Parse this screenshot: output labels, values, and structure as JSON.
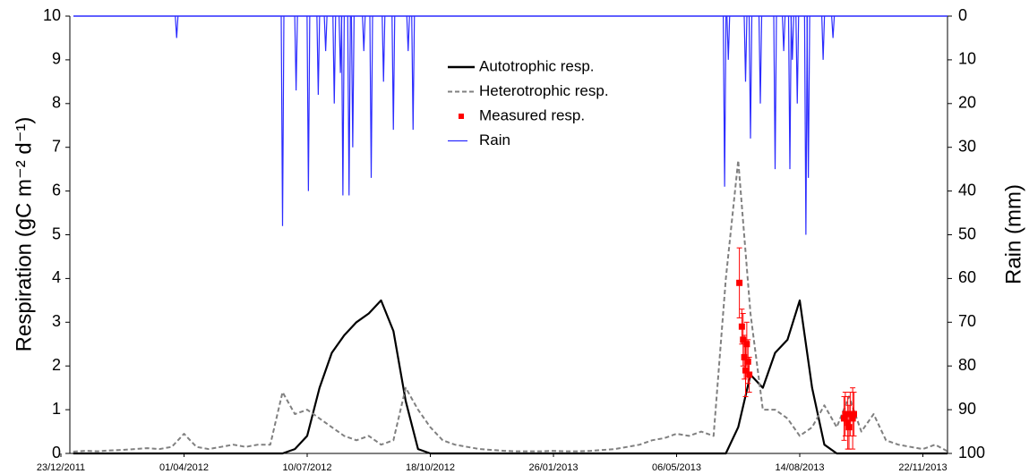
{
  "chart_data": {
    "type": "line",
    "ylabel": "Respiration (gC m⁻² d⁻¹)",
    "y2label": "Rain (mm)",
    "xlim": [
      "2011-12-23",
      "2013-12-12"
    ],
    "xticks": [
      {
        "value": "2011-12-23",
        "label": "23/12/2011"
      },
      {
        "value": "2012-04-01",
        "label": "01/04/2012"
      },
      {
        "value": "2012-07-10",
        "label": "10/07/2012"
      },
      {
        "value": "2012-10-18",
        "label": "18/10/2012"
      },
      {
        "value": "2013-01-26",
        "label": "26/01/2013"
      },
      {
        "value": "2013-05-06",
        "label": "06/05/2013"
      },
      {
        "value": "2013-08-14",
        "label": "14/08/2013"
      },
      {
        "value": "2013-11-22",
        "label": "22/11/2013"
      }
    ],
    "ylim": [
      0,
      10
    ],
    "yticks": [
      0,
      1,
      2,
      3,
      4,
      5,
      6,
      7,
      8,
      9,
      10
    ],
    "y2lim": [
      100,
      0
    ],
    "y2ticks": [
      0,
      10,
      20,
      30,
      40,
      50,
      60,
      70,
      80,
      90,
      100
    ],
    "legend": "upper center",
    "x": [
      "2012-01-02",
      "2012-01-12",
      "2012-01-22",
      "2012-02-01",
      "2012-02-11",
      "2012-02-21",
      "2012-03-02",
      "2012-03-12",
      "2012-03-22",
      "2012-04-01",
      "2012-04-11",
      "2012-04-21",
      "2012-05-01",
      "2012-05-11",
      "2012-05-21",
      "2012-05-31",
      "2012-06-10",
      "2012-06-20",
      "2012-06-30",
      "2012-07-10",
      "2012-07-20",
      "2012-07-30",
      "2012-08-09",
      "2012-08-19",
      "2012-08-29",
      "2012-09-08",
      "2012-09-18",
      "2012-09-28",
      "2012-10-08",
      "2012-10-18",
      "2012-10-28",
      "2012-11-07",
      "2012-11-17",
      "2012-11-27",
      "2012-12-07",
      "2012-12-17",
      "2012-12-27",
      "2013-01-06",
      "2013-01-16",
      "2013-01-26",
      "2013-02-05",
      "2013-02-15",
      "2013-02-25",
      "2013-03-07",
      "2013-03-17",
      "2013-03-27",
      "2013-04-06",
      "2013-04-16",
      "2013-04-26",
      "2013-05-06",
      "2013-05-16",
      "2013-05-26",
      "2013-06-05",
      "2013-06-15",
      "2013-06-25",
      "2013-07-05",
      "2013-07-15",
      "2013-07-25",
      "2013-08-04",
      "2013-08-14",
      "2013-08-24",
      "2013-09-03",
      "2013-09-13",
      "2013-09-23",
      "2013-10-03",
      "2013-10-13",
      "2013-10-23",
      "2013-11-02",
      "2013-11-12",
      "2013-11-22",
      "2013-12-02",
      "2013-12-12"
    ],
    "series": [
      {
        "name": "Autotrophic resp.",
        "kind": "line",
        "color": "#000000",
        "dash": false,
        "values": [
          0,
          0,
          0,
          0,
          0,
          0,
          0,
          0,
          0,
          0,
          0,
          0,
          0,
          0,
          0,
          0,
          0,
          0,
          0.1,
          0.4,
          1.5,
          2.3,
          2.7,
          3.0,
          3.2,
          3.5,
          2.8,
          1.2,
          0.1,
          0,
          0,
          0,
          0,
          0,
          0,
          0,
          0,
          0,
          0,
          0,
          0,
          0,
          0,
          0,
          0,
          0,
          0,
          0,
          0,
          0,
          0,
          0,
          0,
          0,
          0.6,
          1.8,
          1.5,
          2.3,
          2.6,
          3.5,
          1.5,
          0.2,
          0,
          0,
          0,
          0,
          0,
          0,
          0,
          0,
          0,
          0
        ]
      },
      {
        "name": "Heterotrophic resp.",
        "kind": "line",
        "color": "#808080",
        "dash": true,
        "values": [
          0.04,
          0.06,
          0.05,
          0.07,
          0.08,
          0.1,
          0.12,
          0.1,
          0.15,
          0.45,
          0.15,
          0.1,
          0.15,
          0.2,
          0.15,
          0.2,
          0.2,
          1.4,
          0.9,
          1.0,
          0.8,
          0.6,
          0.4,
          0.3,
          0.4,
          0.2,
          0.3,
          1.5,
          1.0,
          0.6,
          0.3,
          0.2,
          0.15,
          0.1,
          0.08,
          0.06,
          0.05,
          0.05,
          0.05,
          0.06,
          0.05,
          0.05,
          0.06,
          0.08,
          0.1,
          0.15,
          0.2,
          0.3,
          0.35,
          0.45,
          0.4,
          0.5,
          0.4,
          4.0,
          6.7,
          3.2,
          1.0,
          1.0,
          0.8,
          0.4,
          0.6,
          1.1,
          0.6,
          1.3,
          0.5,
          0.9,
          0.3,
          0.2,
          0.15,
          0.1,
          0.2,
          0.05
        ]
      },
      {
        "name": "Measured resp.",
        "kind": "points",
        "color": "#ff0000",
        "x": [
          "2013-06-26",
          "2013-06-28",
          "2013-06-29",
          "2013-06-30",
          "2013-07-01",
          "2013-07-02",
          "2013-07-03",
          "2013-07-04",
          "2013-09-19",
          "2013-09-20",
          "2013-09-22",
          "2013-09-23",
          "2013-09-24",
          "2013-09-26",
          "2013-09-27"
        ],
        "values": [
          3.9,
          2.9,
          2.6,
          2.2,
          1.9,
          2.5,
          2.1,
          1.8,
          0.8,
          0.9,
          0.7,
          0.6,
          0.9,
          0.8,
          0.9
        ],
        "errors": [
          0.8,
          0.4,
          0.6,
          0.5,
          0.6,
          0.5,
          0.5,
          0.4,
          0.5,
          0.5,
          0.6,
          0.5,
          0.5,
          0.7,
          0.5
        ]
      },
      {
        "name": "Rain",
        "kind": "spikes",
        "axis": "y2",
        "color": "#2b2bff",
        "x": [
          "2012-03-26",
          "2012-06-20",
          "2012-07-01",
          "2012-07-11",
          "2012-07-19",
          "2012-07-25",
          "2012-08-01",
          "2012-08-06",
          "2012-08-08",
          "2012-08-13",
          "2012-08-16",
          "2012-08-25",
          "2012-08-31",
          "2012-09-10",
          "2012-09-18",
          "2012-09-30",
          "2012-10-04",
          "2013-06-14",
          "2013-06-17",
          "2013-07-01",
          "2013-07-05",
          "2013-07-13",
          "2013-07-25",
          "2013-08-01",
          "2013-08-06",
          "2013-08-08",
          "2013-08-12",
          "2013-08-19",
          "2013-08-21",
          "2013-09-02",
          "2013-09-10"
        ],
        "values": [
          5,
          48,
          17,
          40,
          18,
          8,
          20,
          13,
          41,
          41,
          30,
          8,
          37,
          15,
          26,
          8,
          26,
          39,
          10,
          15,
          28,
          20,
          35,
          8,
          35,
          10,
          20,
          50,
          37,
          10,
          5
        ]
      }
    ]
  }
}
